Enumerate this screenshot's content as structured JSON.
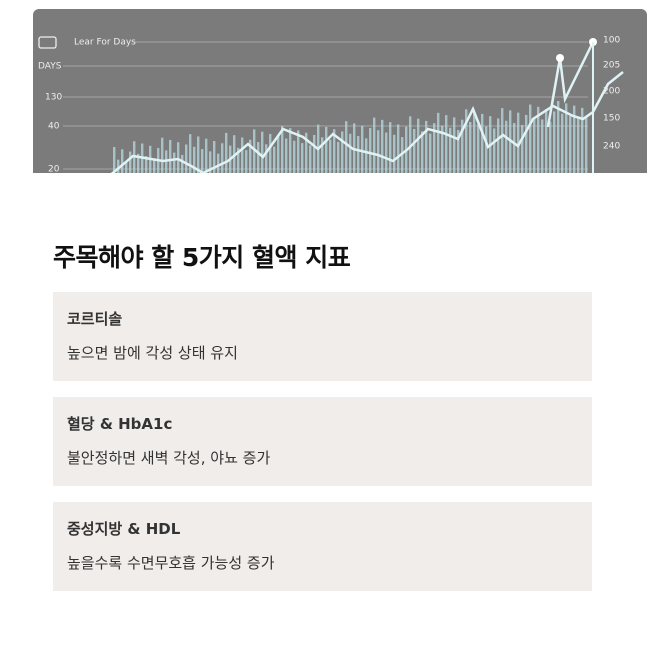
{
  "image": {
    "legend": "Lear For Days",
    "left_labels": [
      "DAYS",
      "130",
      "40",
      "20"
    ],
    "right_labels": [
      "100",
      "205",
      "200",
      "150",
      "240"
    ]
  },
  "section": {
    "title": "주목해야 할 5가지 혈액 지표",
    "cards": [
      {
        "title": "코르티솔",
        "description": "높으면 밤에 각성 상태 유지"
      },
      {
        "title": "혈당 & HbA1c",
        "description": "불안정하면 새벽 각성, 야뇨 증가"
      },
      {
        "title": "중성지방 & HDL",
        "description": "높을수록 수면무호흡 가능성 증가"
      }
    ]
  }
}
